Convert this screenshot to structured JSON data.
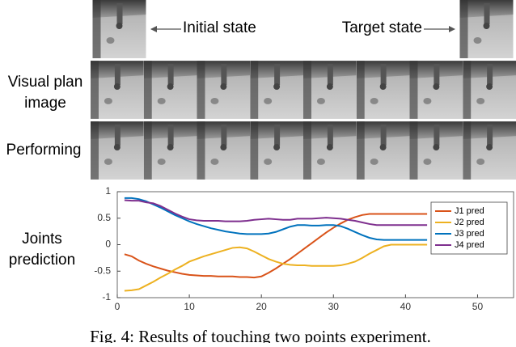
{
  "figure": {
    "initial_state": "Initial state",
    "target_state": "Target state",
    "visual_plan": [
      "Visual plan",
      "image"
    ],
    "performing": "Performing",
    "joints_prediction": [
      "Joints",
      "prediction"
    ],
    "caption": "Fig. 4: Results of touching two points experiment."
  },
  "chart_data": {
    "type": "line",
    "x": [
      1,
      2,
      3,
      4,
      5,
      6,
      7,
      8,
      9,
      10,
      11,
      12,
      13,
      14,
      15,
      16,
      17,
      18,
      19,
      20,
      21,
      22,
      23,
      24,
      25,
      26,
      27,
      28,
      29,
      30,
      31,
      32,
      33,
      34,
      35,
      36,
      37,
      38,
      39,
      40,
      41,
      42,
      43
    ],
    "series": [
      {
        "name": "J1 pred",
        "color": "#d95319",
        "values": [
          -0.18,
          -0.22,
          -0.3,
          -0.36,
          -0.41,
          -0.45,
          -0.49,
          -0.52,
          -0.55,
          -0.57,
          -0.58,
          -0.59,
          -0.59,
          -0.6,
          -0.6,
          -0.6,
          -0.61,
          -0.61,
          -0.62,
          -0.6,
          -0.53,
          -0.45,
          -0.36,
          -0.27,
          -0.17,
          -0.07,
          0.03,
          0.13,
          0.23,
          0.32,
          0.4,
          0.47,
          0.52,
          0.56,
          0.58,
          0.58,
          0.58,
          0.58,
          0.58,
          0.58,
          0.58,
          0.58,
          0.58
        ]
      },
      {
        "name": "J2 pred",
        "color": "#edb120",
        "values": [
          -0.87,
          -0.86,
          -0.84,
          -0.77,
          -0.7,
          -0.62,
          -0.55,
          -0.47,
          -0.4,
          -0.32,
          -0.27,
          -0.22,
          -0.18,
          -0.14,
          -0.1,
          -0.06,
          -0.05,
          -0.07,
          -0.13,
          -0.2,
          -0.27,
          -0.32,
          -0.36,
          -0.38,
          -0.39,
          -0.39,
          -0.4,
          -0.4,
          -0.4,
          -0.4,
          -0.39,
          -0.36,
          -0.32,
          -0.25,
          -0.17,
          -0.1,
          -0.03,
          0,
          0,
          0,
          0,
          0,
          0
        ]
      },
      {
        "name": "J3 pred",
        "color": "#0072bd",
        "values": [
          0.88,
          0.88,
          0.86,
          0.82,
          0.76,
          0.7,
          0.63,
          0.56,
          0.5,
          0.44,
          0.39,
          0.35,
          0.31,
          0.28,
          0.25,
          0.23,
          0.21,
          0.2,
          0.2,
          0.2,
          0.21,
          0.24,
          0.29,
          0.34,
          0.37,
          0.37,
          0.36,
          0.36,
          0.37,
          0.37,
          0.35,
          0.3,
          0.24,
          0.18,
          0.13,
          0.1,
          0.09,
          0.09,
          0.09,
          0.09,
          0.09,
          0.09,
          0.09
        ]
      },
      {
        "name": "J4 pred",
        "color": "#7e2f8e",
        "values": [
          0.84,
          0.83,
          0.83,
          0.8,
          0.78,
          0.73,
          0.66,
          0.59,
          0.53,
          0.48,
          0.46,
          0.45,
          0.45,
          0.45,
          0.44,
          0.44,
          0.44,
          0.45,
          0.47,
          0.48,
          0.49,
          0.48,
          0.47,
          0.47,
          0.49,
          0.49,
          0.49,
          0.5,
          0.51,
          0.5,
          0.49,
          0.47,
          0.45,
          0.42,
          0.39,
          0.37,
          0.37,
          0.37,
          0.37,
          0.37,
          0.37,
          0.37,
          0.37
        ]
      }
    ],
    "xlim": [
      0,
      55
    ],
    "ylim": [
      -1,
      1
    ],
    "xticks": [
      0,
      10,
      20,
      30,
      40,
      50
    ],
    "yticks": [
      -1,
      -0.5,
      0,
      0.5,
      1
    ],
    "legend": "upper right"
  }
}
